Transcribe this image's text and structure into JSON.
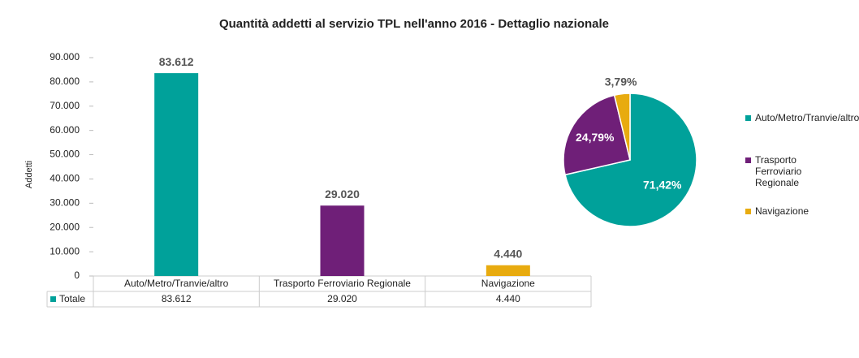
{
  "chart_data": [
    {
      "type": "bar",
      "title": "Quantità addetti al servizio TPL nell'anno 2016 - Dettaglio nazionale",
      "ylabel": "Addetti",
      "categories": [
        "Auto/Metro/Tranvie/altro",
        "Trasporto Ferroviario Regionale",
        "Navigazione"
      ],
      "series": [
        {
          "name": "Totale",
          "color": "#00a19a",
          "values": [
            83612,
            29020,
            4440
          ],
          "value_labels": [
            "83.612",
            "29.020",
            "4.440"
          ]
        }
      ],
      "colors": [
        "#00a19a",
        "#6f1f78",
        "#e8ab0f"
      ],
      "ylim": [
        0,
        90000
      ],
      "yticks": [
        0,
        {
          "value": 10000,
          "label": "10.000"
        },
        {
          "value": 20000,
          "label": "20.000"
        },
        {
          "value": 30000,
          "label": "30.000"
        },
        {
          "value": 40000,
          "label": "40.000"
        },
        {
          "value": 50000,
          "label": "50.000"
        },
        {
          "value": 60000,
          "label": "60.000"
        },
        {
          "value": 70000,
          "label": "70.000"
        },
        {
          "value": 80000,
          "label": "80.000"
        },
        {
          "value": 90000,
          "label": "90.000"
        }
      ],
      "grid": false
    },
    {
      "type": "pie",
      "categories": [
        "Auto/Metro/Tranvie/altro",
        "Trasporto Ferroviario Regionale",
        "Navigazione"
      ],
      "values": [
        71.42,
        24.79,
        3.79
      ],
      "value_labels": [
        "71,42%",
        "24,79%",
        "3,79%"
      ],
      "colors": [
        "#00a19a",
        "#6f1f78",
        "#e8ab0f"
      ],
      "legend": "right"
    }
  ]
}
